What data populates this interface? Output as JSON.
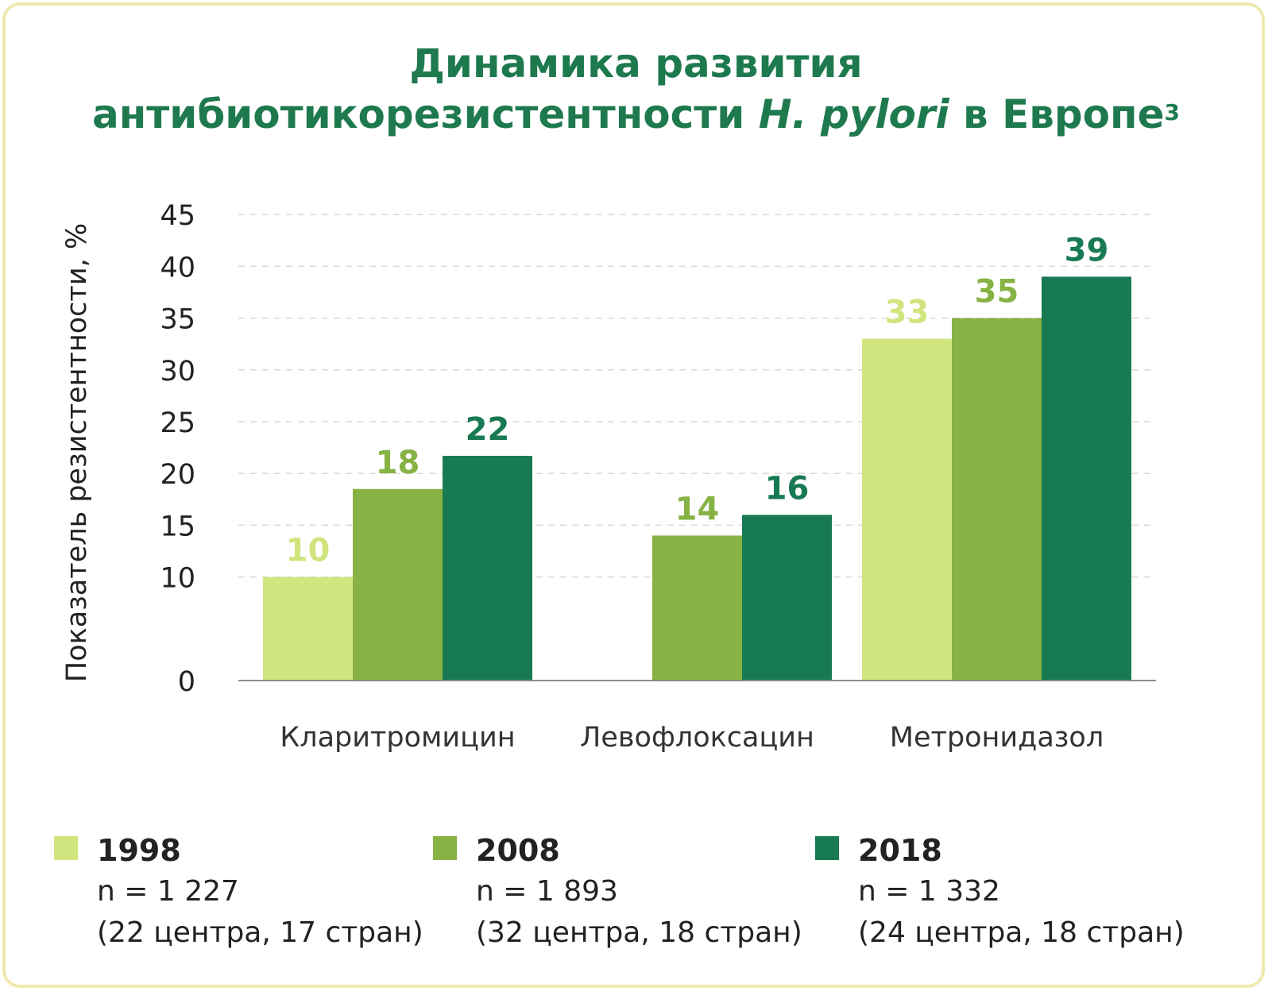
{
  "title": {
    "line1": "Динамика развития",
    "line2_pre": "антибиотикорезистентности ",
    "line2_italic": "H. pylori",
    "line2_post": " в Европе",
    "superscript": "3"
  },
  "colors": {
    "s1998": "#d1e57e",
    "s2008": "#87b244",
    "s2018": "#187a52",
    "title": "#1e7a4e",
    "label1998": "#d1e57e"
  },
  "chart_data": {
    "type": "bar",
    "title": "Динамика развития антибиотикорезистентности H. pylori в Европе",
    "ylabel": "Показатель резистентности, %",
    "xlabel": "",
    "ylim": [
      0,
      45
    ],
    "yticks": [
      0,
      10,
      15,
      20,
      25,
      30,
      35,
      40,
      45
    ],
    "grid": true,
    "categories": [
      "Кларитромицин",
      "Левофлоксацин",
      "Метронидазол"
    ],
    "series": [
      {
        "name": "1998",
        "values": [
          10,
          null,
          33
        ],
        "labels": [
          "10",
          "",
          "33"
        ]
      },
      {
        "name": "2008",
        "values": [
          18.5,
          14,
          35
        ],
        "labels": [
          "18",
          "14",
          "35"
        ]
      },
      {
        "name": "2018",
        "values": [
          21.7,
          16,
          39
        ],
        "labels": [
          "22",
          "16",
          "39"
        ]
      }
    ]
  },
  "legend": [
    {
      "year": "1998",
      "n": "n = 1 227",
      "note": "(22 центра, 17 стран)"
    },
    {
      "year": "2008",
      "n": "n = 1 893",
      "note": "(32 центра, 18 стран)"
    },
    {
      "year": "2018",
      "n": "n = 1 332",
      "note": "(24 центра, 18 стран)"
    }
  ]
}
